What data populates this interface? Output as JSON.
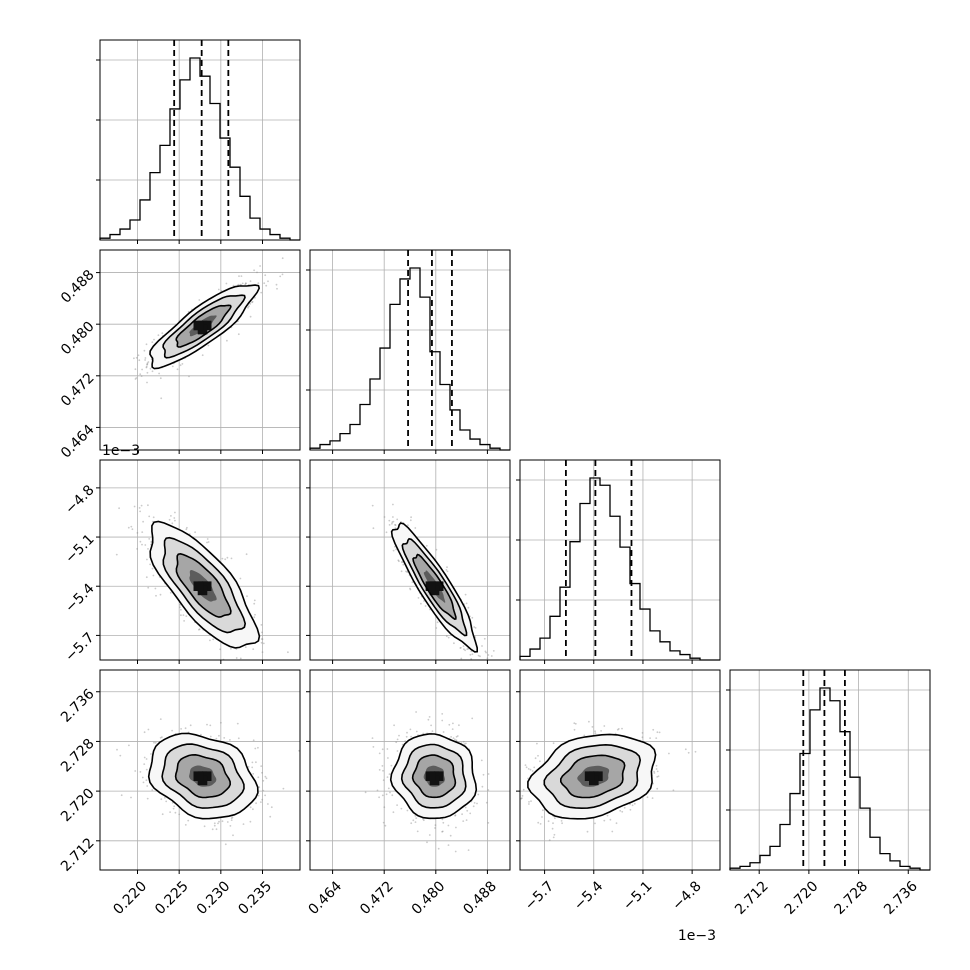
{
  "chart_data": {
    "type": "corner",
    "grid": true,
    "parameters": [
      {
        "range": [
          0.2155,
          0.2395
        ],
        "ticks": [
          0.22,
          0.225,
          0.23,
          0.235
        ],
        "tick_labels": [
          "0.220",
          "0.225",
          "0.230",
          "0.235"
        ],
        "quantiles": [
          0.2244,
          0.2277,
          0.2309
        ],
        "hist_peak": 0.2278,
        "hist_width": 0.0032,
        "offset_text": ""
      },
      {
        "range": [
          0.4605,
          0.4915
        ],
        "ticks": [
          0.464,
          0.472,
          0.48,
          0.488
        ],
        "tick_labels": [
          "0.464",
          "0.472",
          "0.480",
          "0.488"
        ],
        "quantiles": [
          0.4757,
          0.4794,
          0.4825
        ],
        "hist_peak": 0.4798,
        "hist_width": 0.0032,
        "offset_text": ""
      },
      {
        "range": [
          -5.85,
          -4.63
        ],
        "ticks": [
          -5.7,
          -5.4,
          -5.1,
          -4.8
        ],
        "tick_labels": [
          "−5.7",
          "−5.4",
          "−5.1",
          "−4.8"
        ],
        "quantiles": [
          -5.57,
          -5.39,
          -5.17
        ],
        "hist_peak": -5.4,
        "hist_width": 0.19,
        "offset_text": "1e−3"
      },
      {
        "range": [
          2.7073,
          2.7395
        ],
        "ticks": [
          2.712,
          2.72,
          2.728,
          2.736
        ],
        "tick_labels": [
          "2.712",
          "2.720",
          "2.728",
          "2.736"
        ],
        "quantiles": [
          2.7191,
          2.7225,
          2.7258
        ],
        "hist_peak": 2.7224,
        "hist_width": 0.0034,
        "offset_text": ""
      }
    ],
    "histograms": [
      {
        "param": 0,
        "bin_edges_range": [
          0.2155,
          0.2395
        ],
        "counts": [
          1,
          3,
          6,
          11,
          22,
          37,
          52,
          72,
          88,
          100,
          90,
          75,
          56,
          40,
          24,
          12,
          6,
          3,
          1,
          0
        ]
      },
      {
        "param": 1,
        "bin_edges_range": [
          0.4605,
          0.4915
        ],
        "counts": [
          1,
          3,
          5,
          9,
          14,
          25,
          39,
          56,
          80,
          94,
          100,
          84,
          54,
          36,
          22,
          11,
          6,
          3,
          1,
          0
        ]
      },
      {
        "param": 2,
        "bin_edges_range": [
          -5.85,
          -4.63
        ],
        "counts": [
          2,
          6,
          12,
          24,
          40,
          65,
          86,
          100,
          96,
          79,
          62,
          42,
          28,
          16,
          10,
          5,
          3,
          1,
          0,
          0
        ]
      },
      {
        "param": 3,
        "bin_edges_range": [
          2.7073,
          2.7395
        ],
        "counts": [
          1,
          2,
          4,
          8,
          13,
          25,
          42,
          64,
          88,
          100,
          93,
          76,
          51,
          34,
          18,
          9,
          5,
          2,
          1,
          0
        ]
      }
    ],
    "correlations": [
      {
        "x": 0,
        "y": 1,
        "rho": 0.85
      },
      {
        "x": 0,
        "y": 2,
        "rho": -0.75
      },
      {
        "x": 1,
        "y": 2,
        "rho": -0.9
      },
      {
        "x": 0,
        "y": 3,
        "rho": -0.25
      },
      {
        "x": 1,
        "y": 3,
        "rho": -0.05
      },
      {
        "x": 2,
        "y": 3,
        "rho": 0.25
      }
    ],
    "contour_levels_sigma": [
      0.5,
      1.0,
      1.5,
      2.0
    ]
  },
  "colors": {
    "line": "#000000",
    "grid": "#b0b0b0",
    "scatter": "#8c8c8c",
    "frame": "#000000"
  }
}
